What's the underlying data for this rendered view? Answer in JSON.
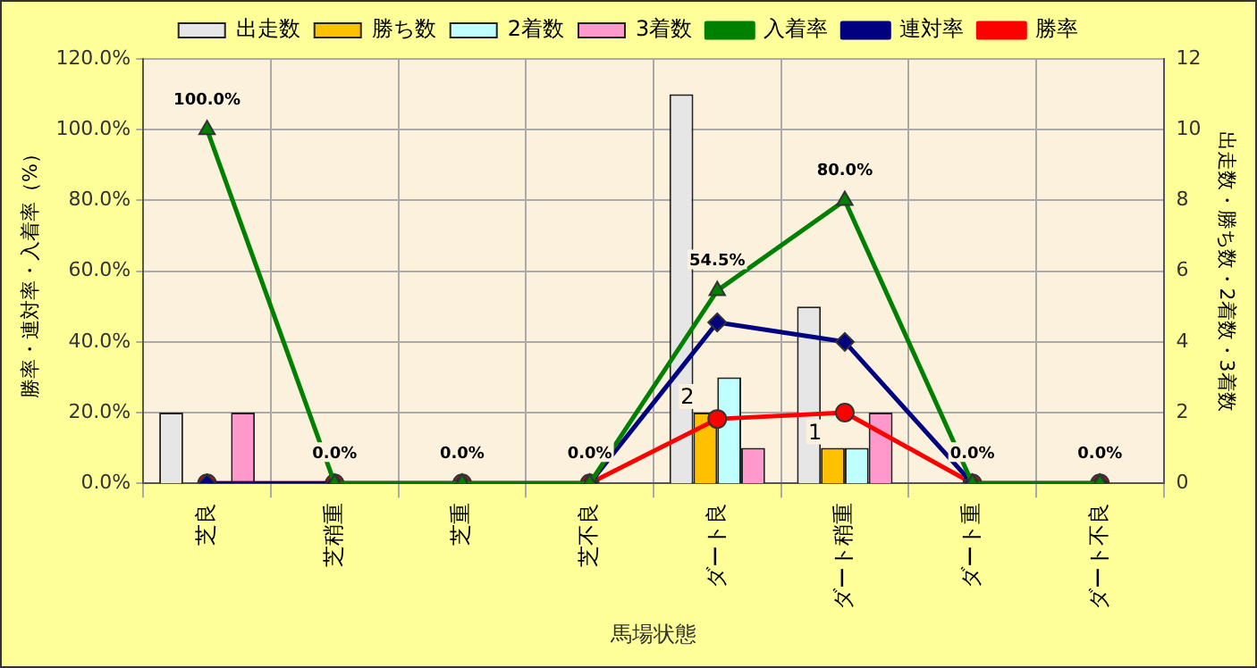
{
  "chart_data": {
    "type": "bar",
    "xlabel": "馬場状態",
    "ylabel": "勝率・連対率・入着率（%）",
    "y2label": "出走数・勝ち数・2着数・3着数",
    "categories": [
      "芝良",
      "芝稍重",
      "芝重",
      "芝不良",
      "ダート良",
      "ダート稍重",
      "ダート重",
      "ダート不良"
    ],
    "series": [
      {
        "name": "出走数",
        "type": "bar",
        "axis": "y2",
        "color": "#e6e6e6",
        "values": [
          2,
          0,
          0,
          0,
          11,
          5,
          0,
          0
        ]
      },
      {
        "name": "勝ち数",
        "type": "bar",
        "axis": "y2",
        "color": "#ffc000",
        "values": [
          0,
          0,
          0,
          0,
          2,
          1,
          0,
          0
        ],
        "value_labels": [
          null,
          null,
          null,
          null,
          "2",
          "1",
          null,
          null
        ]
      },
      {
        "name": "2着数",
        "type": "bar",
        "axis": "y2",
        "color": "#c0ffff",
        "values": [
          0,
          0,
          0,
          0,
          3,
          1,
          0,
          0
        ]
      },
      {
        "name": "3着数",
        "type": "bar",
        "axis": "y2",
        "color": "#ff99cc",
        "values": [
          2,
          0,
          0,
          0,
          1,
          2,
          0,
          0
        ]
      },
      {
        "name": "入着率",
        "type": "line",
        "color": "#008000",
        "marker": "triangle",
        "values": [
          100,
          0,
          0,
          0,
          54.5,
          80,
          0,
          0
        ],
        "value_labels": [
          "100.0%",
          "0.0%",
          "0.0%",
          "0.0%",
          "54.5%",
          "80.0%",
          "0.0%",
          "0.0%"
        ]
      },
      {
        "name": "連対率",
        "type": "line",
        "color": "#000080",
        "marker": "diamond",
        "values": [
          0,
          0,
          0,
          0,
          45.5,
          40,
          0,
          0
        ]
      },
      {
        "name": "勝率",
        "type": "line",
        "color": "#ff0000",
        "marker": "circle",
        "values": [
          0,
          0,
          0,
          0,
          18.2,
          20,
          0,
          0
        ]
      }
    ],
    "ylim": [
      0,
      120
    ],
    "yticks": [
      {
        "value": 0,
        "label": "0.0%"
      },
      {
        "value": 20,
        "label": "20.0%"
      },
      {
        "value": 40,
        "label": "40.0%"
      },
      {
        "value": 60,
        "label": "60.0%"
      },
      {
        "value": 80,
        "label": "80.0%"
      },
      {
        "value": 100,
        "label": "100.0%"
      },
      {
        "value": 120,
        "label": "120.0%"
      }
    ],
    "y2lim": [
      0,
      12
    ],
    "y2ticks": [
      0,
      2,
      4,
      6,
      8,
      10,
      12
    ],
    "grid": true,
    "legend": "top",
    "line_style": "solid"
  }
}
